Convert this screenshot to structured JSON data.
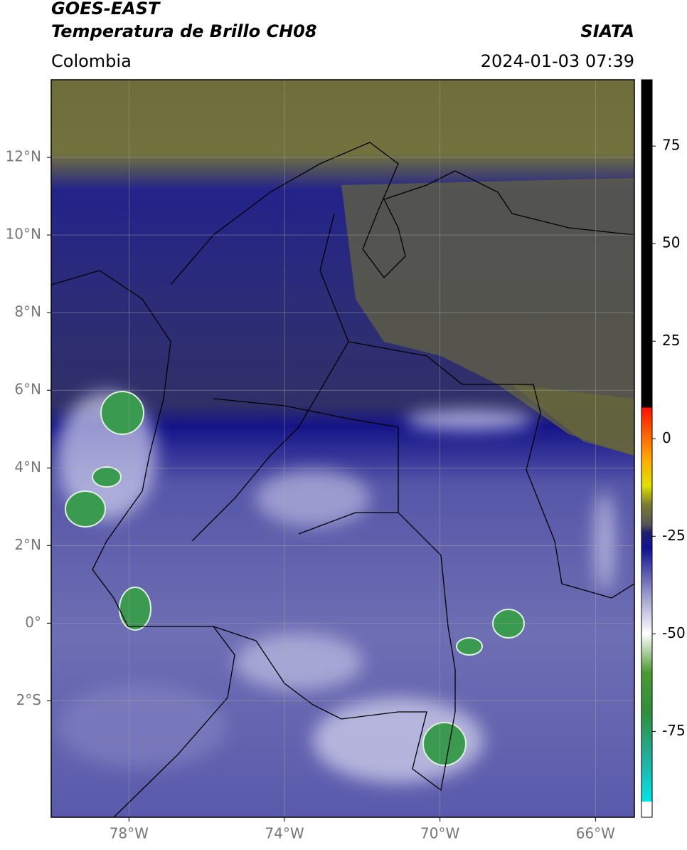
{
  "header": {
    "title_line1": "GOES-EAST",
    "title_line2": "Temperatura de Brillo CH08",
    "agency": "SIATA",
    "region": "Colombia",
    "timestamp": "2024-01-03 07:39"
  },
  "map": {
    "xlim": [
      -80,
      -65
    ],
    "ylim": [
      -5,
      14
    ],
    "xticks": [
      {
        "value": -78,
        "label": "78°W"
      },
      {
        "value": -74,
        "label": "74°W"
      },
      {
        "value": -70,
        "label": "70°W"
      },
      {
        "value": -66,
        "label": "66°W"
      }
    ],
    "yticks": [
      {
        "value": 12,
        "label": "12°N"
      },
      {
        "value": 10,
        "label": "10°N"
      },
      {
        "value": 8,
        "label": "8°N"
      },
      {
        "value": 6,
        "label": "6°N"
      },
      {
        "value": 4,
        "label": "4°N"
      },
      {
        "value": 2,
        "label": "2°N"
      },
      {
        "value": 0,
        "label": "0°"
      },
      {
        "value": -2,
        "label": "2°S"
      }
    ],
    "grid": true
  },
  "colorbar": {
    "lim": [
      -97,
      92
    ],
    "ticks": [
      75,
      50,
      25,
      0,
      -25,
      -50,
      -75
    ],
    "stops": [
      [
        -97,
        "#ffffff"
      ],
      [
        -93,
        "#ffffff"
      ],
      [
        -93,
        "#00e5e5"
      ],
      [
        -82,
        "#22b0a0"
      ],
      [
        -70,
        "#2f8f3a"
      ],
      [
        -60,
        "#4a9a30"
      ],
      [
        -53,
        "#c8e0c0"
      ],
      [
        -50,
        "#ffffff"
      ],
      [
        -40,
        "#9a9acc"
      ],
      [
        -28,
        "#101090"
      ],
      [
        -24,
        "#202070"
      ],
      [
        -22,
        "#555555"
      ],
      [
        -17,
        "#7a7a30"
      ],
      [
        -12,
        "#e0e000"
      ],
      [
        -6,
        "#ffb000"
      ],
      [
        0,
        "#ff7000"
      ],
      [
        8,
        "#ff1000"
      ],
      [
        8,
        "#000000"
      ],
      [
        92,
        "#000000"
      ]
    ]
  }
}
